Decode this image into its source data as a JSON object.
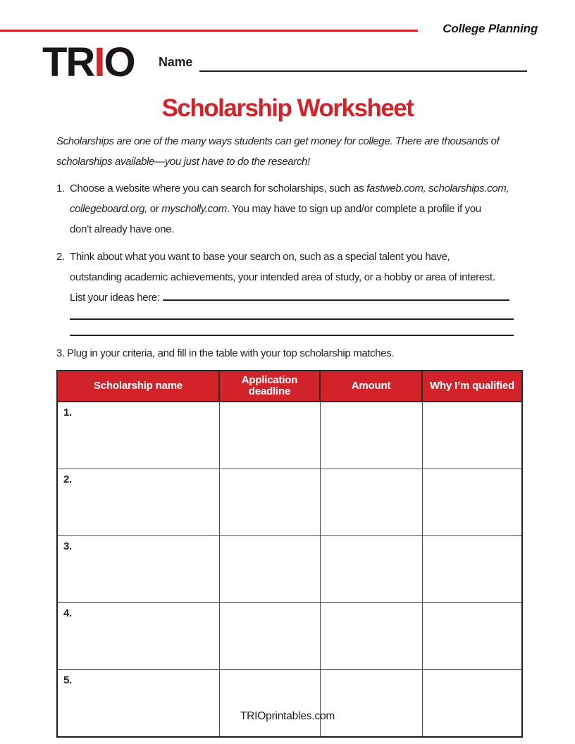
{
  "header": {
    "category_label": "College Planning",
    "logo": {
      "part_tr": "TR",
      "part_i": "I",
      "part_o": "O"
    },
    "name_label": "Name"
  },
  "title": "Scholarship Worksheet",
  "intro_segments": [
    {
      "text": "Scholarships are one of the many ways students can get money for college. There are thousands of",
      "italic": false,
      "break_after": true
    },
    {
      "text": "scholarships available—you just have to do the research!",
      "italic": false,
      "break_after": false
    }
  ],
  "instructions": {
    "item1": {
      "number": "1.",
      "segments": [
        {
          "text": "Choose a website where you can search for scholarships, such as ",
          "italic": false,
          "break_after": false
        },
        {
          "text": "fastweb.com, scholarships.com,",
          "italic": true,
          "break_after": true
        },
        {
          "text": "collegeboard.org,",
          "italic": true,
          "break_after": false
        },
        {
          "text": " or ",
          "italic": false,
          "break_after": false
        },
        {
          "text": "myscholly.com",
          "italic": true,
          "break_after": false
        },
        {
          "text": ". You may have to sign up and/or complete a profile if you",
          "italic": false,
          "break_after": true
        },
        {
          "text": "don’t already have one.",
          "italic": false,
          "break_after": false
        }
      ]
    },
    "item2": {
      "number": "2.",
      "segments": [
        {
          "text": "Think about what you want to base your search on, such as a special talent you have,",
          "italic": false,
          "break_after": true
        },
        {
          "text": "outstanding academic achievements, your intended area of study, or a hobby or area of interest.",
          "italic": false,
          "break_after": true
        },
        {
          "text": "List your ideas here:",
          "italic": false,
          "break_after": false
        }
      ]
    },
    "item3": {
      "number": "3.",
      "text": "Plug in your criteria, and fill in the table with your top scholarship matches."
    }
  },
  "table": {
    "headers": [
      "Scholarship name",
      "Application deadline",
      "Amount",
      "Why I’m qualified"
    ],
    "rows": [
      {
        "number": "1.",
        "scholarship_name": "",
        "application_deadline": "",
        "amount": "",
        "why_qualified": ""
      },
      {
        "number": "2.",
        "scholarship_name": "",
        "application_deadline": "",
        "amount": "",
        "why_qualified": ""
      },
      {
        "number": "3.",
        "scholarship_name": "",
        "application_deadline": "",
        "amount": "",
        "why_qualified": ""
      },
      {
        "number": "4.",
        "scholarship_name": "",
        "application_deadline": "",
        "amount": "",
        "why_qualified": ""
      },
      {
        "number": "5.",
        "scholarship_name": "",
        "application_deadline": "",
        "amount": "",
        "why_qualified": ""
      }
    ]
  },
  "footer": "TRIOprintables.com",
  "colors": {
    "accent_red": "#d2232a",
    "text": "#231f20"
  }
}
